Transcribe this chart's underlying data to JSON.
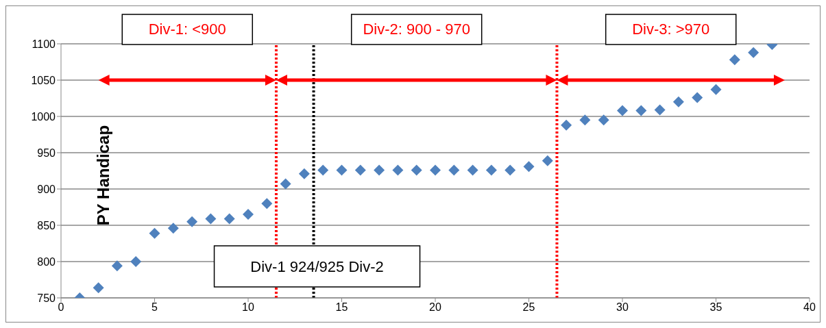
{
  "chart_data": {
    "type": "scatter",
    "ylabel": "PY Handicap",
    "x": [
      1,
      2,
      3,
      4,
      5,
      6,
      7,
      8,
      9,
      10,
      11,
      12,
      13,
      14,
      15,
      16,
      17,
      18,
      19,
      20,
      21,
      22,
      23,
      24,
      25,
      26,
      27,
      28,
      29,
      30,
      31,
      32,
      33,
      34,
      35,
      36,
      37,
      38
    ],
    "series": [
      {
        "color": "#4f81bd",
        "values": [
          750,
          764,
          794,
          800,
          839,
          846,
          855,
          859,
          859,
          865,
          880,
          907,
          921,
          926,
          926,
          926,
          926,
          926,
          926,
          926,
          926,
          926,
          926,
          926,
          931,
          939,
          988,
          995,
          995,
          1008,
          1008,
          1009,
          1020,
          1026,
          1037,
          1078,
          1088,
          1099
        ]
      }
    ],
    "xlim": [
      0,
      40
    ],
    "xticks": [
      0,
      5,
      10,
      15,
      20,
      25,
      30,
      35,
      40
    ],
    "ylim": [
      750,
      1100
    ],
    "yticks": [
      750,
      800,
      850,
      900,
      950,
      1000,
      1050,
      1100
    ],
    "grid": "y",
    "marker": "diamond",
    "legend": false,
    "annotations": [
      "Div-1: <900",
      "Div-2: 900 - 970",
      "Div-3: >970"
    ],
    "ref_lines": [
      {
        "axis": "x",
        "value": 11.5,
        "color": "#ff0000",
        "line_style": "dotted"
      },
      {
        "axis": "x",
        "value": 26.5,
        "color": "#ff0000",
        "line_style": "dotted"
      },
      {
        "axis": "x",
        "value": 13.5,
        "color": "#000000",
        "line_style": "dotted",
        "label": "Div-1 924/925 Div-2"
      }
    ]
  }
}
